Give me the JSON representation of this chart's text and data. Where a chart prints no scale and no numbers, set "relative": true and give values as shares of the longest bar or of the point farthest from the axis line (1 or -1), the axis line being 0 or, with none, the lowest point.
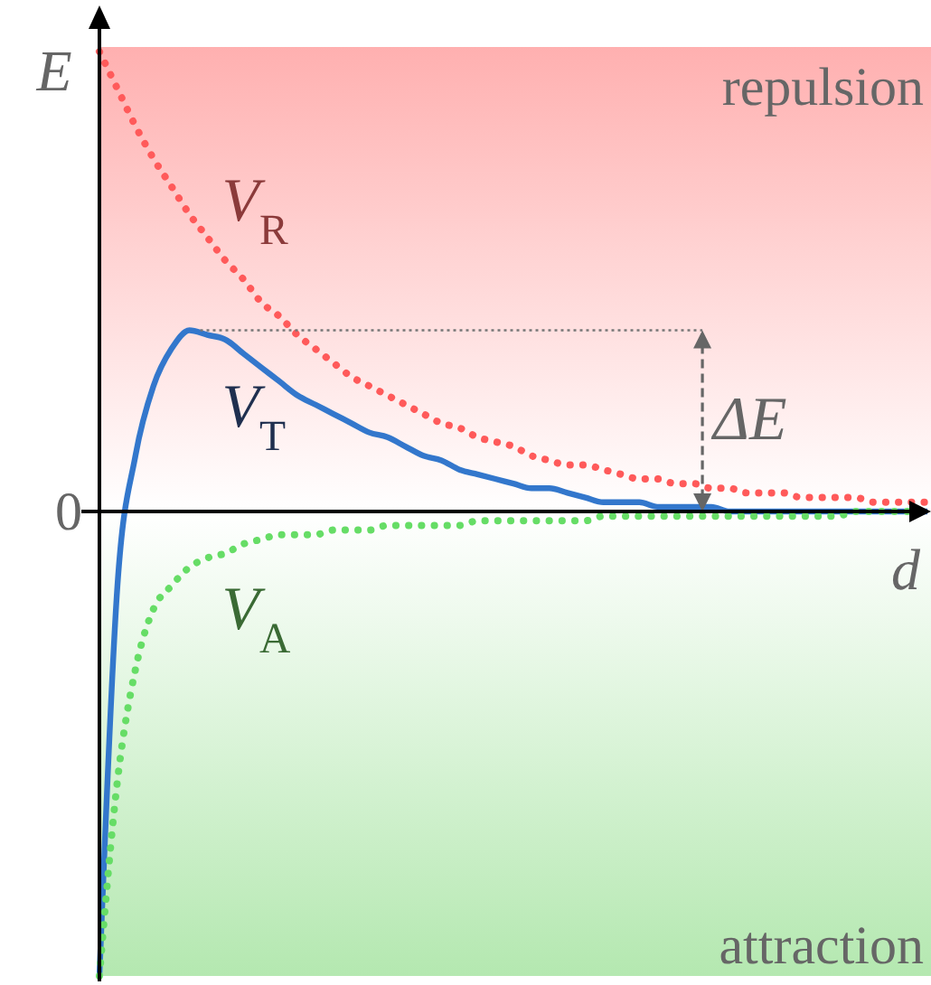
{
  "chart_data": {
    "type": "line",
    "relative": true,
    "xlabel": "d",
    "ylabel": "E",
    "categories": [
      null,
      null,
      null,
      null,
      null,
      null,
      null,
      null,
      null,
      null,
      null,
      null,
      null,
      null,
      null,
      null,
      null,
      null,
      null,
      null,
      null,
      null,
      null,
      null,
      null,
      null,
      null,
      null,
      null,
      null,
      null,
      null,
      null,
      null,
      null,
      null,
      null,
      null,
      null,
      null,
      null,
      null,
      null,
      null,
      null,
      null,
      null
    ],
    "series": [
      {
        "name": "V$_{R}$",
        "color": "#ff5a5a",
        "line_style": "dotted",
        "values": [
          0.99,
          0.91,
          0.83,
          0.76,
          0.7,
          0.64,
          0.59,
          0.54,
          0.5,
          0.45,
          0.42,
          0.38,
          0.35,
          0.32,
          0.29,
          0.27,
          0.25,
          0.23,
          0.21,
          0.19,
          0.18,
          0.16,
          0.15,
          0.14,
          0.12,
          0.11,
          0.1,
          0.1,
          0.09,
          0.08,
          0.07,
          0.07,
          0.06,
          0.06,
          0.05,
          0.05,
          0.04,
          0.04,
          0.04,
          0.03,
          0.03,
          0.03,
          0.03,
          0.02,
          0.02,
          0.02,
          0.02
        ]
      },
      {
        "name": "V$_{T}$",
        "color": "#3377cc",
        "line_style": "solid",
        "values": [
          -1,
          -0.16,
          0.12,
          0.27,
          0.35,
          0.39,
          0.38,
          0.37,
          0.34,
          0.31,
          0.28,
          0.25,
          0.23,
          0.21,
          0.19,
          0.17,
          0.16,
          0.14,
          0.12,
          0.11,
          0.09,
          0.08,
          0.07,
          0.06,
          0.05,
          0.05,
          0.04,
          0.03,
          0.02,
          0.02,
          0.02,
          0.01,
          0.01,
          0.01,
          0.01,
          0,
          0,
          0,
          0,
          0,
          0,
          0,
          0,
          0,
          0,
          0,
          0
        ]
      },
      {
        "name": "V$_{A}$",
        "color": "#66dd66",
        "line_style": "dotted",
        "values": [
          -1,
          -0.58,
          -0.34,
          -0.21,
          -0.16,
          -0.12,
          -0.1,
          -0.09,
          -0.07,
          -0.06,
          -0.05,
          -0.05,
          -0.05,
          -0.04,
          -0.04,
          -0.04,
          -0.03,
          -0.03,
          -0.03,
          -0.03,
          -0.03,
          -0.02,
          -0.02,
          -0.02,
          -0.02,
          -0.02,
          -0.02,
          -0.02,
          -0.01,
          -0.01,
          -0.01,
          -0.01,
          -0.01,
          -0.01,
          -0.01,
          -0.01,
          -0.01,
          -0.01,
          -0.01,
          -0.01,
          -0.01,
          -0.01,
          0,
          0,
          0,
          0,
          0
        ]
      }
    ],
    "bands": [
      {
        "axis": "y",
        "from": 0,
        "to": 1,
        "color": "#ffb0b0",
        "label": "repulsion"
      },
      {
        "axis": "y",
        "from": -1,
        "to": 0,
        "color": "#b4e8b0",
        "label": "attraction"
      }
    ],
    "annotations": [
      "0",
      "ΔE"
    ]
  }
}
